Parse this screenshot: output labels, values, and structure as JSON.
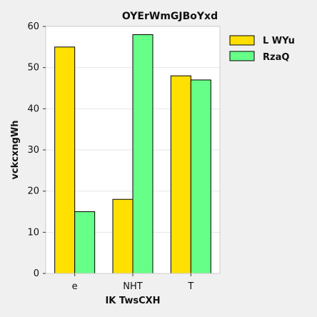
{
  "chart_data": {
    "type": "bar",
    "title": "OYErWmGJBoYxd",
    "xlabel": "IK TwsCXH",
    "ylabel": "vckcxngWh",
    "categories": [
      "e",
      "NHT",
      "T"
    ],
    "series": [
      {
        "name": "L WYu",
        "values": [
          55,
          18,
          48
        ],
        "color": "#ffe000"
      },
      {
        "name": "RzaQ",
        "values": [
          15,
          58,
          47
        ],
        "color": "#66ff88"
      }
    ],
    "ylim": [
      0,
      60
    ],
    "yticks": [
      0,
      10,
      20,
      30,
      40,
      50,
      60
    ],
    "grid": true,
    "legend_position": "top-right"
  }
}
